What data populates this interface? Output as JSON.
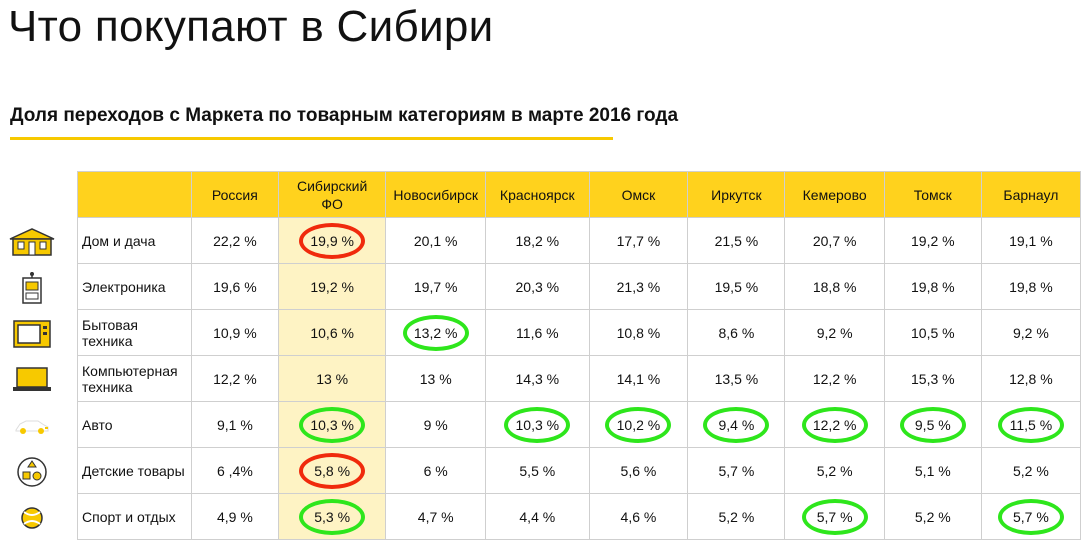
{
  "title": "Что покупают в Сибири",
  "subtitle": "Доля переходов с Маркета по товарным категориям в марте 2016 года",
  "colors": {
    "accent": "#ffd21d",
    "highlight_column": "#fef3c4",
    "green_ring": "#2ee61c",
    "red_ring": "#f02a0c"
  },
  "chart_data": {
    "type": "table",
    "columns": [
      "Россия",
      "Сибирский ФО",
      "Новосибирск",
      "Красноярск",
      "Омск",
      "Иркутск",
      "Кемерово",
      "Томск",
      "Барнаул"
    ],
    "rows": [
      {
        "category": "Дом и дача",
        "icon": "house-icon",
        "values": [
          "22,2 %",
          "19,9 %",
          "20,1 %",
          "18,2 %",
          "17,7 %",
          "21,5 %",
          "20,7 %",
          "19,2 %",
          "19,1 %"
        ],
        "marks": [
          "",
          "red",
          "",
          "",
          "",
          "",
          "",
          "",
          ""
        ]
      },
      {
        "category": "Электроника",
        "icon": "electronics-icon",
        "values": [
          "19,6 %",
          "19,2 %",
          "19,7 %",
          "20,3 %",
          "21,3 %",
          "19,5 %",
          "18,8 %",
          "19,8 %",
          "19,8 %"
        ],
        "marks": [
          "",
          "",
          "",
          "",
          "",
          "",
          "",
          "",
          ""
        ]
      },
      {
        "category": "Бытовая техника",
        "icon": "microwave-icon",
        "values": [
          "10,9 %",
          "10,6 %",
          "13,2 %",
          "11,6 %",
          "10,8 %",
          "8,6 %",
          "9,2 %",
          "10,5 %",
          "9,2 %"
        ],
        "marks": [
          "",
          "",
          "green",
          "",
          "",
          "",
          "",
          "",
          ""
        ]
      },
      {
        "category": "Компьютерная техника",
        "icon": "laptop-icon",
        "values": [
          "12,2 %",
          "13 %",
          "13 %",
          "14,3 %",
          "14,1 %",
          "13,5 %",
          "12,2 %",
          "15,3 %",
          "12,8 %"
        ],
        "marks": [
          "",
          "",
          "",
          "",
          "",
          "",
          "",
          "",
          ""
        ]
      },
      {
        "category": "Авто",
        "icon": "car-icon",
        "values": [
          "9,1 %",
          "10,3 %",
          "9 %",
          "10,3 %",
          "10,2 %",
          "9,4 %",
          "12,2 %",
          "9,5 %",
          "11,5 %"
        ],
        "marks": [
          "",
          "green",
          "",
          "green",
          "green",
          "green",
          "green",
          "green",
          "green"
        ]
      },
      {
        "category": "Детские товары",
        "icon": "toys-icon",
        "values": [
          "6 ,4%",
          "5,8 %",
          "6 %",
          "5,5 %",
          "5,6 %",
          "5,7 %",
          "5,2 %",
          "5,1 %",
          "5,2 %"
        ],
        "marks": [
          "",
          "red",
          "",
          "",
          "",
          "",
          "",
          "",
          ""
        ]
      },
      {
        "category": "Спорт и отдых",
        "icon": "ball-icon",
        "values": [
          "4,9 %",
          "5,3 %",
          "4,7 %",
          "4,4 %",
          "4,6 %",
          "5,2 %",
          "5,7 %",
          "5,2 %",
          "5,7 %"
        ],
        "marks": [
          "",
          "green",
          "",
          "",
          "",
          "",
          "green",
          "",
          "green"
        ]
      }
    ]
  }
}
